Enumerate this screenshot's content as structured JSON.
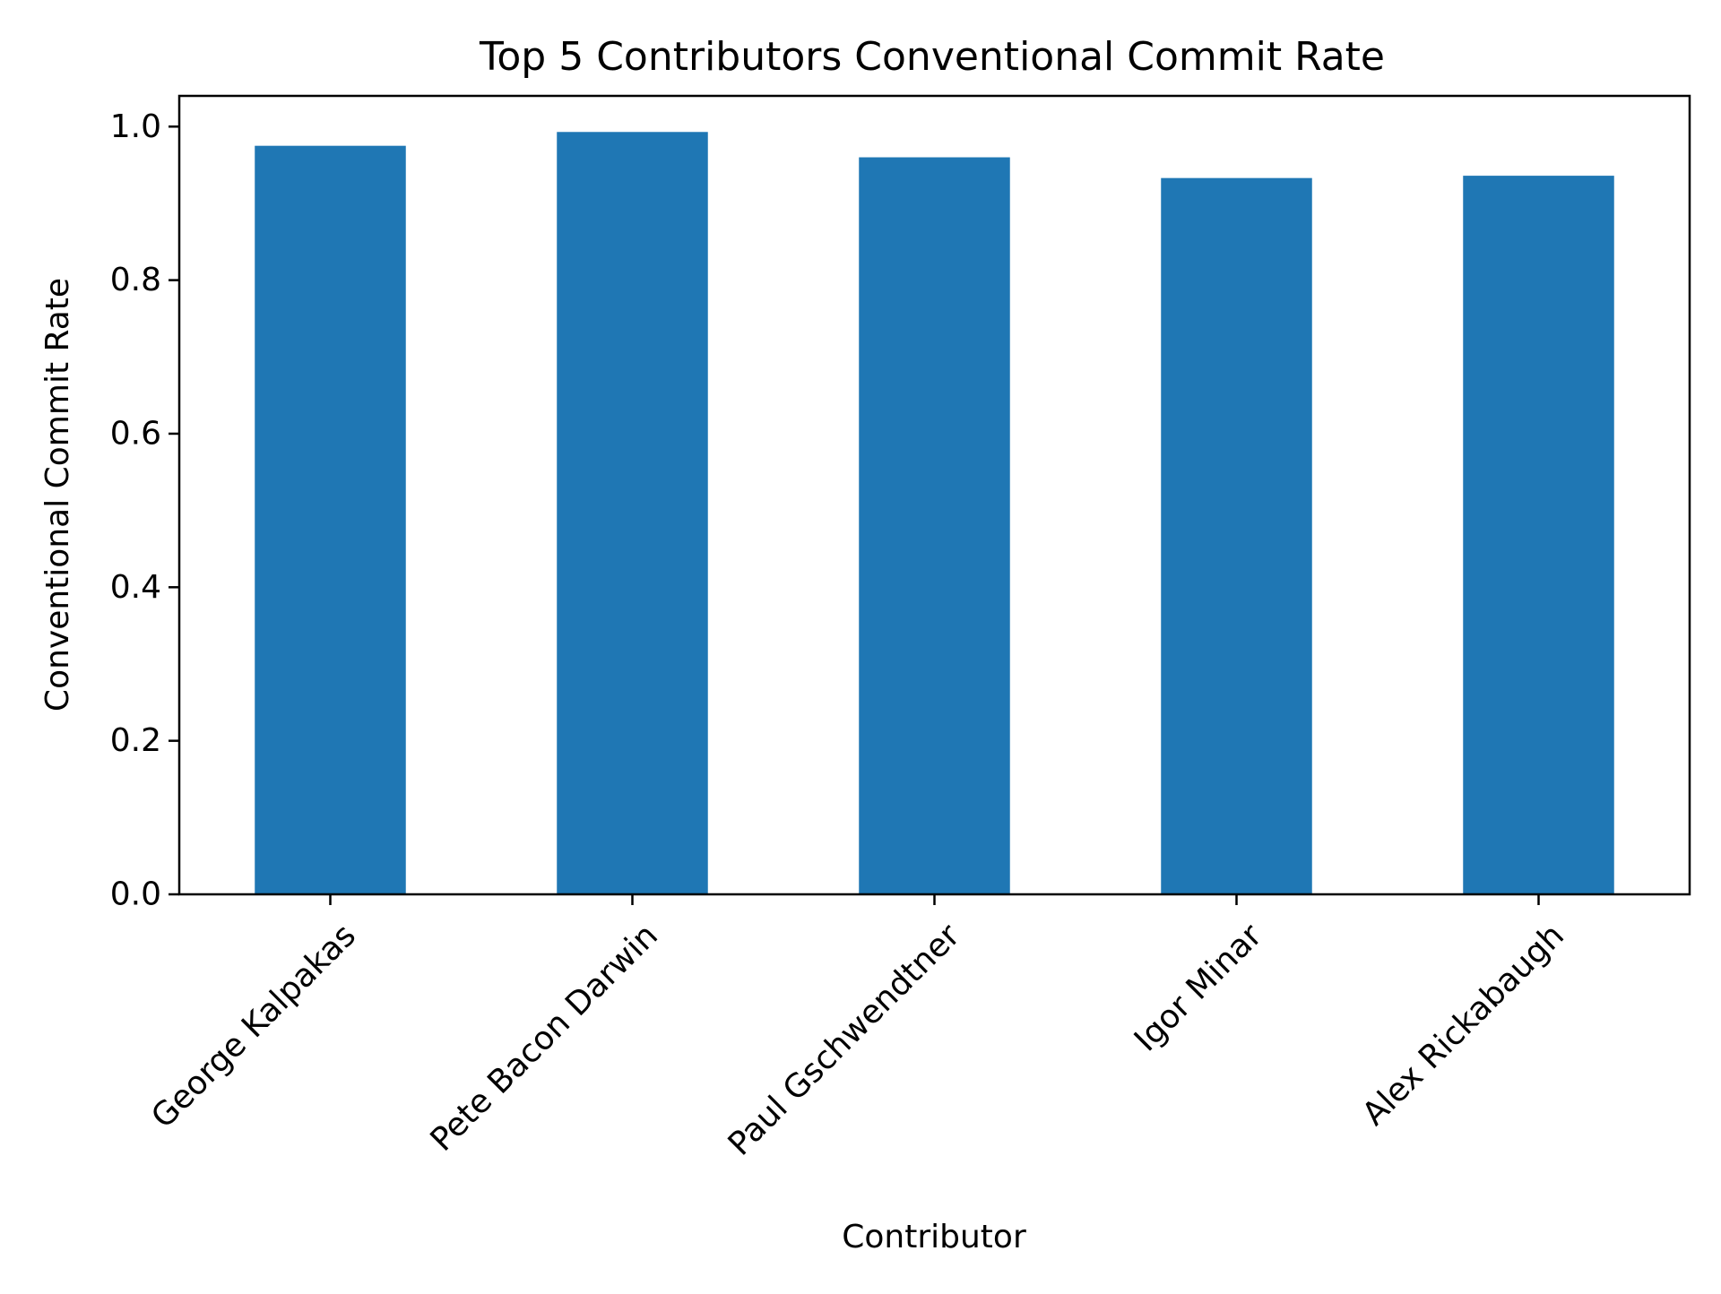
{
  "chart_data": {
    "type": "bar",
    "title": "Top 5 Contributors Conventional Commit Rate",
    "xlabel": "Contributor",
    "ylabel": "Conventional Commit Rate",
    "categories": [
      "George Kalpakas",
      "Pete Bacon Darwin",
      "Paul Gschwendtner",
      "Igor Minar",
      "Alex Rickabaugh"
    ],
    "values": [
      0.975,
      0.993,
      0.96,
      0.933,
      0.936
    ],
    "ylim": [
      0,
      1.04
    ],
    "yticks": [
      0.0,
      0.2,
      0.4,
      0.6,
      0.8,
      1.0
    ],
    "ytick_labels": [
      "0.0",
      "0.2",
      "0.4",
      "0.6",
      "0.8",
      "1.0"
    ],
    "bar_color": "#1f77b4",
    "grid": false,
    "legend": "none"
  }
}
